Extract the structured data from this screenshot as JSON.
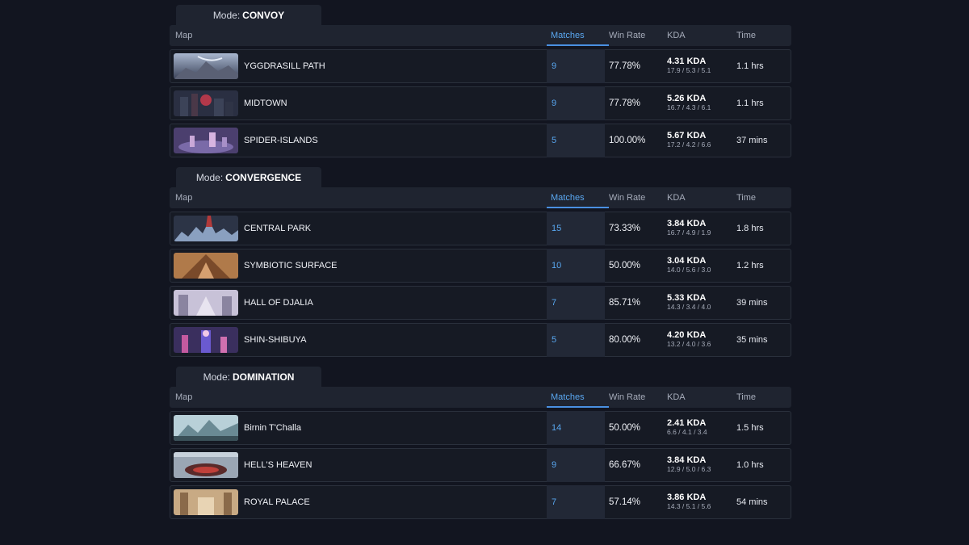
{
  "columns": {
    "map": "Map",
    "matches": "Matches",
    "win_rate": "Win Rate",
    "kda": "KDA",
    "time": "Time"
  },
  "mode_prefix": "Mode:",
  "sections": [
    {
      "mode": "CONVOY",
      "rows": [
        {
          "map": "YGGDRASILL PATH",
          "matches": "9",
          "win_rate": "77.78%",
          "kda": "4.31 KDA",
          "kda_detail": "17.9 / 5.3 / 5.1",
          "time": "1.1 hrs"
        },
        {
          "map": "MIDTOWN",
          "matches": "9",
          "win_rate": "77.78%",
          "kda": "5.26 KDA",
          "kda_detail": "16.7 / 4.3 / 6.1",
          "time": "1.1 hrs"
        },
        {
          "map": "SPIDER-ISLANDS",
          "matches": "5",
          "win_rate": "100.00%",
          "kda": "5.67 KDA",
          "kda_detail": "17.2 / 4.2 / 6.6",
          "time": "37 mins"
        }
      ]
    },
    {
      "mode": "CONVERGENCE",
      "rows": [
        {
          "map": "CENTRAL PARK",
          "matches": "15",
          "win_rate": "73.33%",
          "kda": "3.84 KDA",
          "kda_detail": "16.7 / 4.9 / 1.9",
          "time": "1.8 hrs"
        },
        {
          "map": "SYMBIOTIC SURFACE",
          "matches": "10",
          "win_rate": "50.00%",
          "kda": "3.04 KDA",
          "kda_detail": "14.0 / 5.6 / 3.0",
          "time": "1.2 hrs"
        },
        {
          "map": "HALL OF DJALIA",
          "matches": "7",
          "win_rate": "85.71%",
          "kda": "5.33 KDA",
          "kda_detail": "14.3 / 3.4 / 4.0",
          "time": "39 mins"
        },
        {
          "map": "SHIN-SHIBUYA",
          "matches": "5",
          "win_rate": "80.00%",
          "kda": "4.20 KDA",
          "kda_detail": "13.2 / 4.0 / 3.6",
          "time": "35 mins"
        }
      ]
    },
    {
      "mode": "DOMINATION",
      "rows": [
        {
          "map": "Birnin T'Challa",
          "matches": "14",
          "win_rate": "50.00%",
          "kda": "2.41 KDA",
          "kda_detail": "6.6 / 4.1 / 3.4",
          "time": "1.5 hrs"
        },
        {
          "map": "HELL'S HEAVEN",
          "matches": "9",
          "win_rate": "66.67%",
          "kda": "3.84 KDA",
          "kda_detail": "12.9 / 5.0 / 6.3",
          "time": "1.0 hrs"
        },
        {
          "map": "ROYAL PALACE",
          "matches": "7",
          "win_rate": "57.14%",
          "kda": "3.86 KDA",
          "kda_detail": "14.3 / 5.1 / 5.6",
          "time": "54 mins"
        }
      ]
    }
  ],
  "colors": {
    "background": "#121520",
    "panel": "#1f2430",
    "accent": "#4a90e2",
    "matches_text": "#58a6ef"
  }
}
